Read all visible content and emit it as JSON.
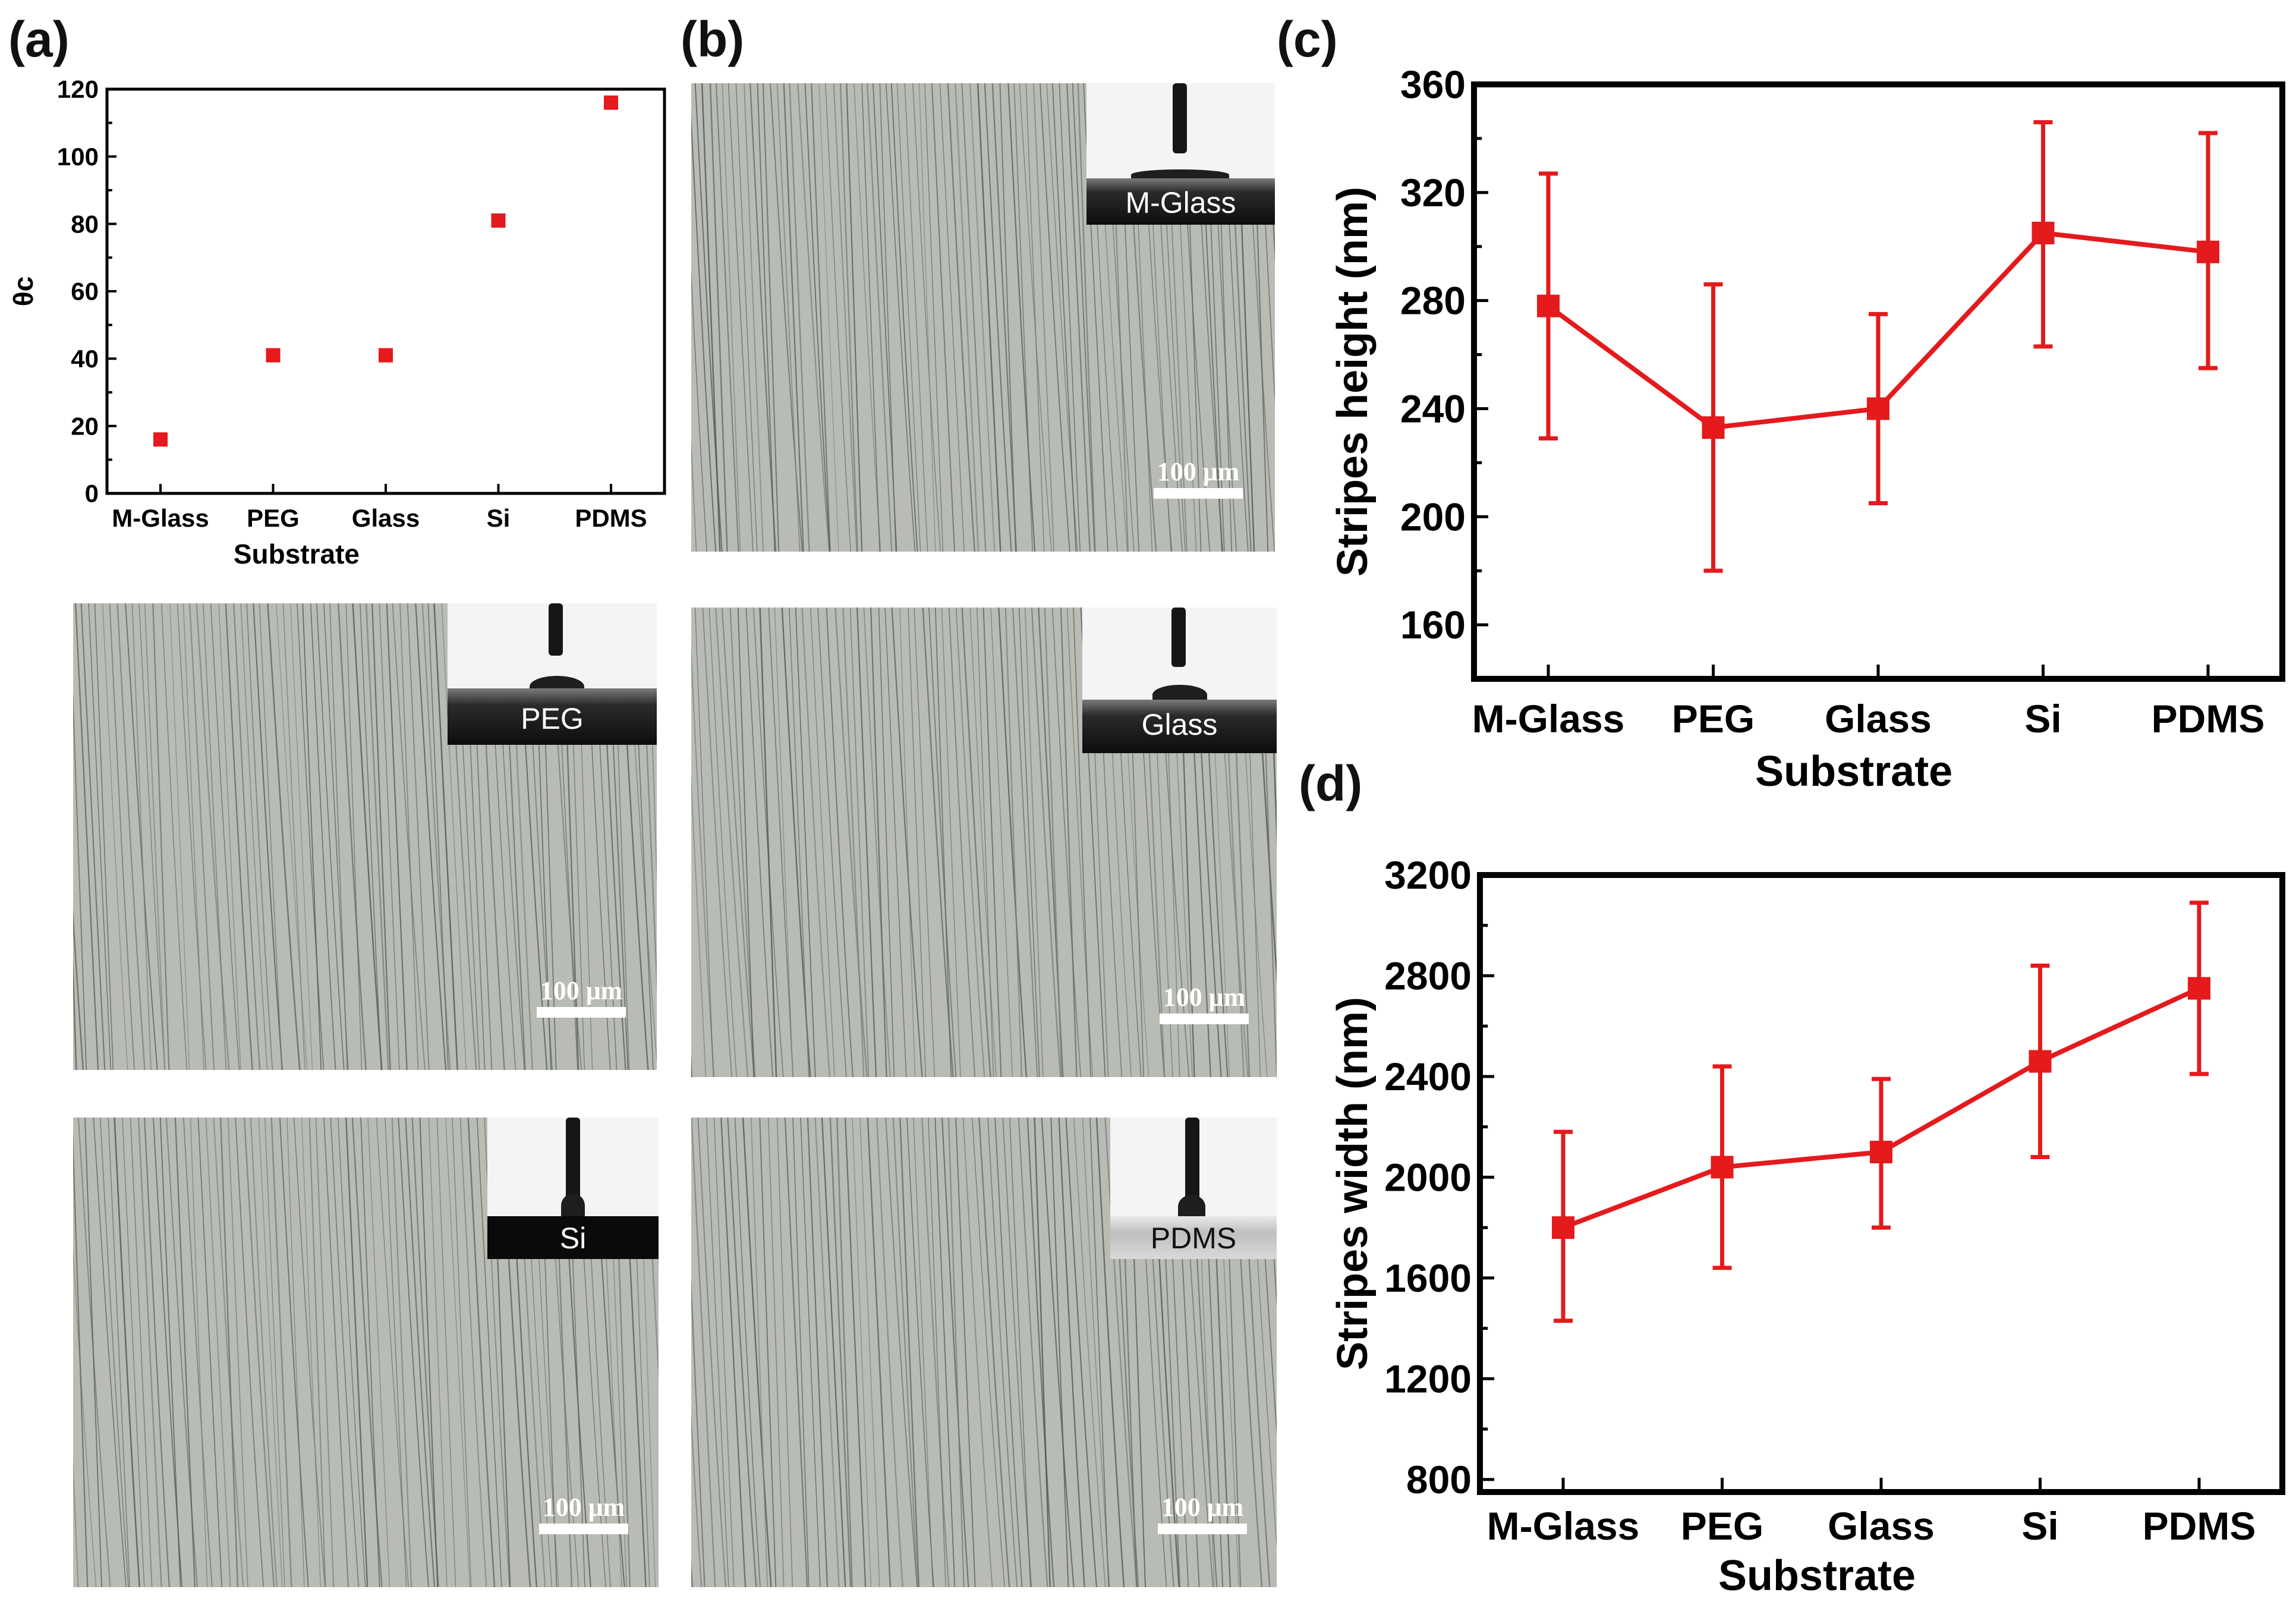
{
  "panel_labels": [
    "(a)",
    "(b)",
    "(c)",
    "(d)"
  ],
  "colors": {
    "series": "#e41a1c",
    "axis": "#000000",
    "micro_bg": "#b8bcb5"
  },
  "chart_data": [
    {
      "id": "a",
      "type": "scatter",
      "title": "",
      "xlabel": "Substrate",
      "ylabel": "θc",
      "categories": [
        "M-Glass",
        "PEG",
        "Glass",
        "Si",
        "PDMS"
      ],
      "values": [
        16,
        41,
        41,
        81,
        116
      ],
      "ylim": [
        0,
        120
      ],
      "yticks": [
        0,
        20,
        40,
        60,
        80,
        100,
        120
      ],
      "grid": false
    },
    {
      "id": "c",
      "type": "line",
      "title": "",
      "xlabel": "Substrate",
      "ylabel": "Stripes height (nm)",
      "categories": [
        "M-Glass",
        "PEG",
        "Glass",
        "Si",
        "PDMS"
      ],
      "values": [
        278,
        233,
        240,
        305,
        298
      ],
      "error_low": [
        229,
        180,
        205,
        263,
        255
      ],
      "error_high": [
        327,
        286,
        275,
        346,
        342
      ],
      "ylim": [
        140,
        360
      ],
      "yticks": [
        160,
        200,
        240,
        280,
        320,
        360
      ],
      "grid": false
    },
    {
      "id": "d",
      "type": "line",
      "title": "",
      "xlabel": "Substrate",
      "ylabel": "Stripes width (nm)",
      "categories": [
        "M-Glass",
        "PEG",
        "Glass",
        "Si",
        "PDMS"
      ],
      "values": [
        1800,
        2040,
        2100,
        2460,
        2750
      ],
      "error_low": [
        1430,
        1640,
        1800,
        2080,
        2410
      ],
      "error_high": [
        2180,
        2440,
        2390,
        2840,
        3090
      ],
      "ylim": [
        750,
        3200
      ],
      "yticks": [
        800,
        1200,
        1600,
        2000,
        2400,
        2800,
        3200
      ],
      "grid": false
    }
  ],
  "micrographs": [
    {
      "substrate": "M-Glass",
      "scale_label": "100 μm"
    },
    {
      "substrate": "PEG",
      "scale_label": "100 μm"
    },
    {
      "substrate": "Glass",
      "scale_label": "100 μm"
    },
    {
      "substrate": "Si",
      "scale_label": "100 μm"
    },
    {
      "substrate": "PDMS",
      "scale_label": "100 μm"
    }
  ]
}
